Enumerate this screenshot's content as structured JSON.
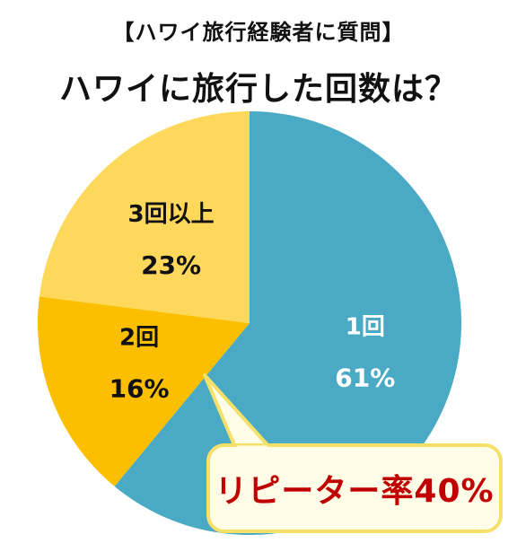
{
  "header": {
    "subtitle": "【ハワイ旅行経験者に質問】",
    "title": "ハワイに旅行した回数は？"
  },
  "callout": {
    "text": "リピーター率40%",
    "text_color": "#c00000",
    "fill": "#fffde7",
    "border": "#f5e06a"
  },
  "chart_data": {
    "type": "pie",
    "title": "ハワイに旅行した回数は？",
    "start": "12 o'clock, clockwise",
    "slices": [
      {
        "label": "1回",
        "percent_label": "61%",
        "value": 61,
        "color": "#4aa9c4",
        "label_color": "#ffffff"
      },
      {
        "label": "2回",
        "percent_label": "16%",
        "value": 16,
        "color": "#fbbf00",
        "label_color": "#111111"
      },
      {
        "label": "3回以上",
        "percent_label": "23%",
        "value": 23,
        "color": "#fed85a",
        "label_color": "#111111"
      }
    ]
  }
}
